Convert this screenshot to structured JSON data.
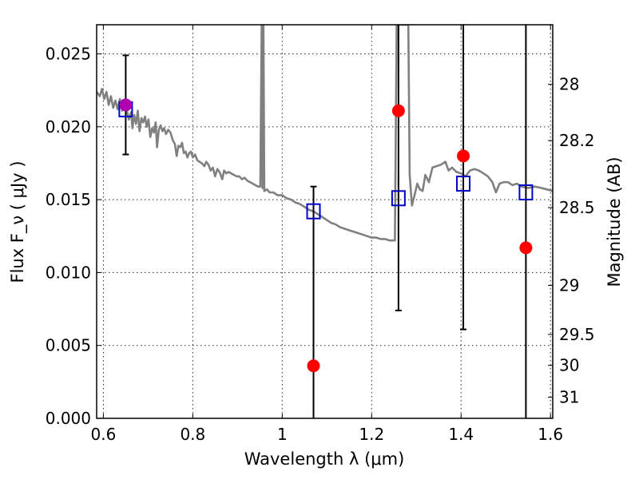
{
  "chart_data": {
    "type": "scatter",
    "xlabel": "Wavelength  λ (μm)",
    "ylabel": "Flux  F_ν  ( μJy )",
    "y2label": "Magnitude (AB)",
    "xlim": [
      0.585,
      1.605
    ],
    "ylim": [
      0.0,
      0.027
    ],
    "grid": true,
    "x_ticks": [
      {
        "v": 0.6,
        "label": "0.6"
      },
      {
        "v": 0.8,
        "label": "0.8"
      },
      {
        "v": 1.0,
        "label": "1"
      },
      {
        "v": 1.2,
        "label": "1.2"
      },
      {
        "v": 1.4,
        "label": "1.4"
      },
      {
        "v": 1.6,
        "label": "1.6"
      }
    ],
    "y_ticks": [
      {
        "v": 0.0,
        "label": "0.000"
      },
      {
        "v": 0.005,
        "label": "0.005"
      },
      {
        "v": 0.01,
        "label": "0.010"
      },
      {
        "v": 0.015,
        "label": "0.015"
      },
      {
        "v": 0.02,
        "label": "0.020"
      },
      {
        "v": 0.025,
        "label": "0.025"
      }
    ],
    "y2_ticks": [
      {
        "mag": 28,
        "label": "28"
      },
      {
        "mag": 28.2,
        "label": "28.2"
      },
      {
        "mag": 28.5,
        "label": "28.5"
      },
      {
        "mag": 29,
        "label": "29"
      },
      {
        "mag": 29.5,
        "label": "29.5"
      },
      {
        "mag": 30,
        "label": "30"
      },
      {
        "mag": 31,
        "label": "31"
      }
    ],
    "colors": {
      "spectrum": "#808080",
      "observed": "#ff0000",
      "model": "#0000cc",
      "overlap": "#b000b0",
      "errorbar": "#000000"
    },
    "spectrum": [
      [
        0.585,
        0.0224
      ],
      [
        0.592,
        0.0221
      ],
      [
        0.597,
        0.0226
      ],
      [
        0.602,
        0.0219
      ],
      [
        0.607,
        0.0224
      ],
      [
        0.612,
        0.0215
      ],
      [
        0.617,
        0.0221
      ],
      [
        0.622,
        0.0213
      ],
      [
        0.627,
        0.0218
      ],
      [
        0.632,
        0.0212
      ],
      [
        0.637,
        0.0219
      ],
      [
        0.642,
        0.0211
      ],
      [
        0.647,
        0.0216
      ],
      [
        0.652,
        0.0212
      ],
      [
        0.657,
        0.0205
      ],
      [
        0.662,
        0.021
      ],
      [
        0.665,
        0.0199
      ],
      [
        0.669,
        0.0208
      ],
      [
        0.673,
        0.0202
      ],
      [
        0.677,
        0.0211
      ],
      [
        0.681,
        0.0197
      ],
      [
        0.685,
        0.0206
      ],
      [
        0.689,
        0.0203
      ],
      [
        0.693,
        0.0207
      ],
      [
        0.697,
        0.02
      ],
      [
        0.701,
        0.0205
      ],
      [
        0.705,
        0.0193
      ],
      [
        0.709,
        0.0199
      ],
      [
        0.713,
        0.0196
      ],
      [
        0.717,
        0.0203
      ],
      [
        0.72,
        0.0186
      ],
      [
        0.724,
        0.0198
      ],
      [
        0.728,
        0.0201
      ],
      [
        0.732,
        0.0197
      ],
      [
        0.736,
        0.0199
      ],
      [
        0.74,
        0.0195
      ],
      [
        0.745,
        0.0198
      ],
      [
        0.75,
        0.0196
      ],
      [
        0.755,
        0.0191
      ],
      [
        0.76,
        0.0188
      ],
      [
        0.764,
        0.018
      ],
      [
        0.768,
        0.0187
      ],
      [
        0.772,
        0.0186
      ],
      [
        0.776,
        0.0189
      ],
      [
        0.78,
        0.0182
      ],
      [
        0.784,
        0.0183
      ],
      [
        0.788,
        0.0179
      ],
      [
        0.792,
        0.0182
      ],
      [
        0.796,
        0.0183
      ],
      [
        0.8,
        0.0179
      ],
      [
        0.805,
        0.0181
      ],
      [
        0.81,
        0.0177
      ],
      [
        0.815,
        0.0176
      ],
      [
        0.82,
        0.0175
      ],
      [
        0.826,
        0.0173
      ],
      [
        0.83,
        0.0176
      ],
      [
        0.835,
        0.0174
      ],
      [
        0.84,
        0.017
      ],
      [
        0.845,
        0.0172
      ],
      [
        0.85,
        0.0166
      ],
      [
        0.855,
        0.0171
      ],
      [
        0.86,
        0.0169
      ],
      [
        0.866,
        0.0164
      ],
      [
        0.87,
        0.017
      ],
      [
        0.875,
        0.0168
      ],
      [
        0.88,
        0.0169
      ],
      [
        0.886,
        0.0168
      ],
      [
        0.892,
        0.0167
      ],
      [
        0.898,
        0.0166
      ],
      [
        0.904,
        0.0166
      ],
      [
        0.91,
        0.0164
      ],
      [
        0.916,
        0.0165
      ],
      [
        0.922,
        0.0163
      ],
      [
        0.928,
        0.0162
      ],
      [
        0.934,
        0.0161
      ],
      [
        0.94,
        0.016
      ],
      [
        0.946,
        0.0159
      ],
      [
        0.951,
        0.0159
      ],
      [
        0.954,
        0.027
      ],
      [
        0.956,
        0.0158
      ],
      [
        0.958,
        0.027
      ],
      [
        0.96,
        0.0156
      ],
      [
        0.966,
        0.0157
      ],
      [
        0.972,
        0.0155
      ],
      [
        0.98,
        0.0155
      ],
      [
        0.99,
        0.0153
      ],
      [
        1.0,
        0.0153
      ],
      [
        1.01,
        0.0151
      ],
      [
        1.02,
        0.015
      ],
      [
        1.03,
        0.0148
      ],
      [
        1.04,
        0.0147
      ],
      [
        1.05,
        0.0145
      ],
      [
        1.06,
        0.0143
      ],
      [
        1.07,
        0.0142
      ],
      [
        1.08,
        0.014
      ],
      [
        1.09,
        0.0138
      ],
      [
        1.1,
        0.0136
      ],
      [
        1.11,
        0.0134
      ],
      [
        1.12,
        0.0133
      ],
      [
        1.13,
        0.0131
      ],
      [
        1.14,
        0.013
      ],
      [
        1.15,
        0.0129
      ],
      [
        1.16,
        0.0128
      ],
      [
        1.17,
        0.0127
      ],
      [
        1.18,
        0.0126
      ],
      [
        1.19,
        0.0125
      ],
      [
        1.2,
        0.0124
      ],
      [
        1.21,
        0.0124
      ],
      [
        1.22,
        0.0123
      ],
      [
        1.23,
        0.0123
      ],
      [
        1.24,
        0.0122
      ],
      [
        1.252,
        0.0122
      ],
      [
        1.256,
        0.027
      ],
      [
        1.27,
        0.027
      ],
      [
        1.282,
        0.027
      ],
      [
        1.285,
        0.0167
      ],
      [
        1.29,
        0.0146
      ],
      [
        1.296,
        0.0153
      ],
      [
        1.302,
        0.0161
      ],
      [
        1.308,
        0.0157
      ],
      [
        1.314,
        0.0156
      ],
      [
        1.32,
        0.0167
      ],
      [
        1.328,
        0.0162
      ],
      [
        1.336,
        0.0172
      ],
      [
        1.345,
        0.0173
      ],
      [
        1.355,
        0.0174
      ],
      [
        1.365,
        0.0176
      ],
      [
        1.372,
        0.017
      ],
      [
        1.38,
        0.0172
      ],
      [
        1.39,
        0.0169
      ],
      [
        1.4,
        0.0168
      ],
      [
        1.41,
        0.0166
      ],
      [
        1.42,
        0.017
      ],
      [
        1.43,
        0.0171
      ],
      [
        1.44,
        0.017
      ],
      [
        1.45,
        0.0168
      ],
      [
        1.46,
        0.0166
      ],
      [
        1.47,
        0.0162
      ],
      [
        1.478,
        0.0155
      ],
      [
        1.486,
        0.0161
      ],
      [
        1.495,
        0.0162
      ],
      [
        1.505,
        0.0162
      ],
      [
        1.515,
        0.016
      ],
      [
        1.525,
        0.0161
      ],
      [
        1.535,
        0.0159
      ],
      [
        1.55,
        0.0158
      ],
      [
        1.565,
        0.0159
      ],
      [
        1.58,
        0.0158
      ],
      [
        1.592,
        0.0157
      ],
      [
        1.605,
        0.0156
      ]
    ],
    "observed": [
      {
        "x": 0.65,
        "y": 0.0215,
        "err": 0.0034
      },
      {
        "x": 1.07,
        "y": 0.0036,
        "err": 0.0123
      },
      {
        "x": 1.26,
        "y": 0.0211,
        "err": 0.0137
      },
      {
        "x": 1.405,
        "y": 0.018,
        "err": 0.0119
      },
      {
        "x": 1.545,
        "y": 0.0117,
        "err": 0.03
      }
    ],
    "model": [
      {
        "x": 0.65,
        "y": 0.0212
      },
      {
        "x": 1.07,
        "y": 0.0142
      },
      {
        "x": 1.26,
        "y": 0.0151
      },
      {
        "x": 1.405,
        "y": 0.0161
      },
      {
        "x": 1.545,
        "y": 0.0155
      }
    ]
  }
}
